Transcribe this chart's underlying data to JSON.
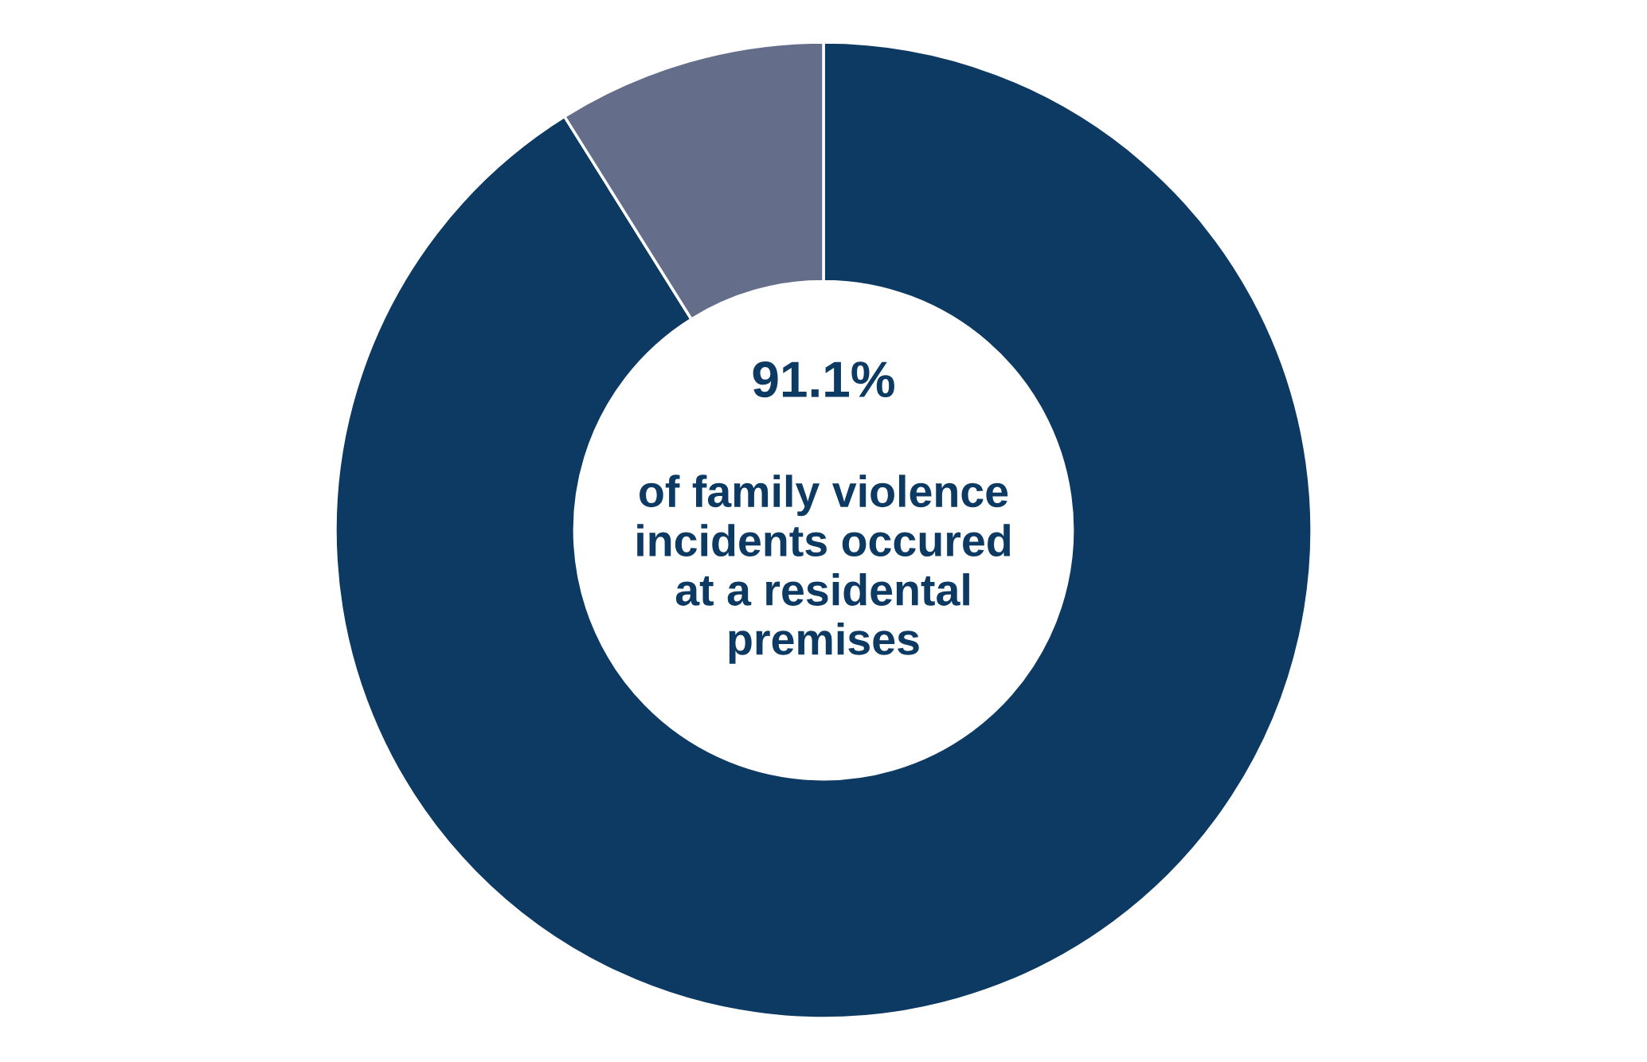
{
  "chart_data": {
    "type": "donut",
    "categories": [
      null,
      null
    ],
    "values": [
      91.1,
      8.9
    ],
    "colors": [
      "#0d3a62",
      "#646e8a"
    ],
    "annotations": [
      "91.1%",
      "of family violence\nincidents occured\nat a residental\npremises"
    ]
  }
}
